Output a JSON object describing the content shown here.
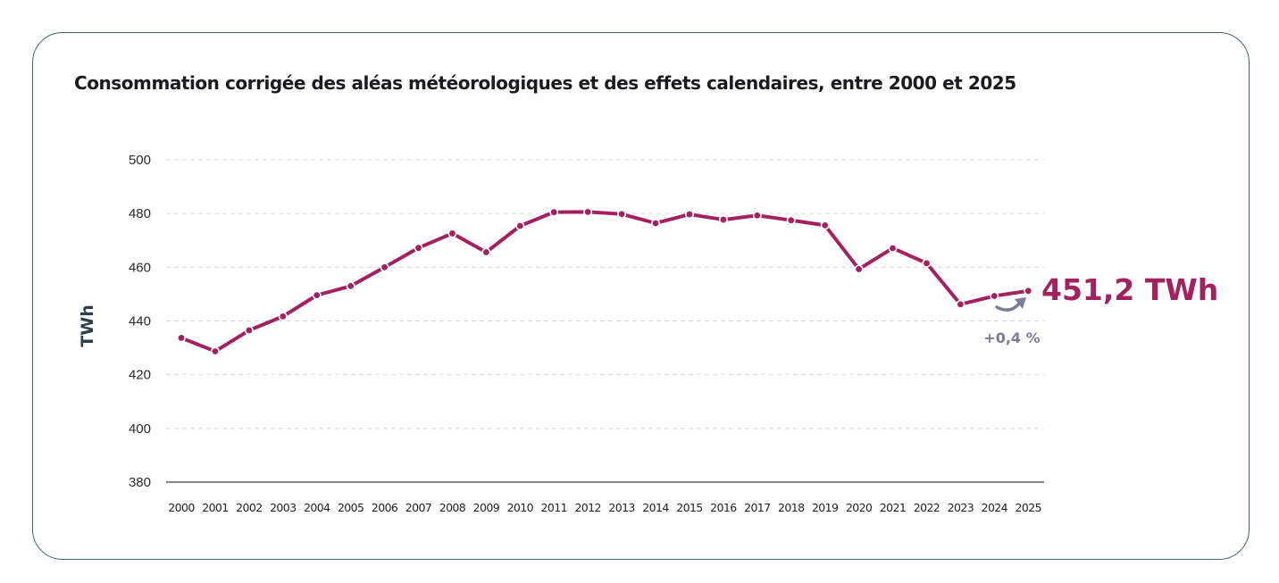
{
  "card": {
    "border_color": "#41606f"
  },
  "chart_data": {
    "type": "line",
    "title": "Consommation corrigée des aléas météorologiques et des effets calendaires, entre 2000 et 2025",
    "xlabel": "",
    "ylabel": "TWh",
    "ylim": [
      380,
      500
    ],
    "yticks": [
      500,
      480,
      460,
      440,
      420,
      400,
      380
    ],
    "grid": true,
    "grid_style": "dashed",
    "legend": "none",
    "categories": [
      "2000",
      "2001",
      "2002",
      "2003",
      "2004",
      "2005",
      "2006",
      "2007",
      "2008",
      "2009",
      "2010",
      "2011",
      "2012",
      "2013",
      "2014",
      "2015",
      "2016",
      "2017",
      "2018",
      "2019",
      "2020",
      "2021",
      "2022",
      "2023",
      "2024",
      "2025"
    ],
    "series": [
      {
        "name": "Consommation corrigée",
        "color": "#a3225e",
        "values": [
          433.7,
          428.7,
          436.5,
          441.7,
          449.6,
          453.0,
          460.0,
          467.2,
          472.6,
          465.6,
          475.4,
          480.5,
          480.6,
          479.8,
          476.4,
          479.7,
          477.7,
          479.3,
          477.5,
          475.6,
          459.3,
          467.1,
          461.5,
          446.2,
          449.3,
          451.2
        ]
      }
    ],
    "annotations": {
      "last_value_label": "451,2 TWh",
      "last_value_color": "#a3225e",
      "change_label": "+0,4 %",
      "change_color": "#7c7d95",
      "change_icon": "curved-arrow-up-right-icon"
    }
  }
}
